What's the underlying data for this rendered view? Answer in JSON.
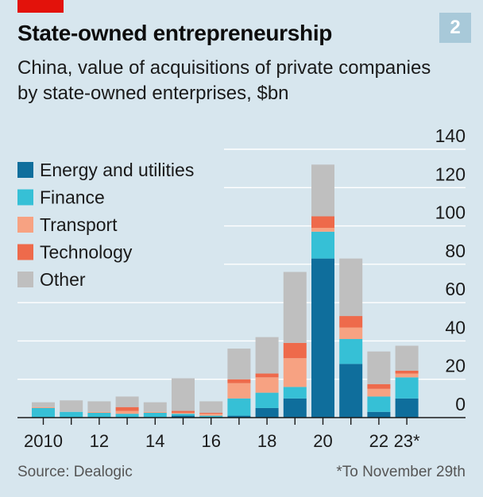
{
  "header": {
    "badge": "2",
    "title": "State-owned entrepreneurship",
    "subtitle": "China, value of acquisitions of private companies by state-owned enterprises, $bn"
  },
  "footer": {
    "source": "Source: Dealogic",
    "footnote": "*To November 29th"
  },
  "colors": {
    "background": "#d7e6ee",
    "brand_red": "#e3120b",
    "energy": "#0f6e9c",
    "finance": "#36c0d6",
    "transport": "#f7a282",
    "technology": "#ee6a4b",
    "other": "#bfbfbf"
  },
  "chart_data": {
    "type": "bar",
    "stacked": true,
    "categories": [
      "2010",
      "2011",
      "2012",
      "2013",
      "2014",
      "2015",
      "2016",
      "2017",
      "2018",
      "2019",
      "2020",
      "2021",
      "2022",
      "2023*"
    ],
    "x_tick_labels": [
      "2010",
      "",
      "12",
      "",
      "14",
      "",
      "16",
      "",
      "18",
      "",
      "20",
      "",
      "22",
      "23*"
    ],
    "series": [
      {
        "name": "Energy and utilities",
        "color": "#0f6e9c",
        "values": [
          0,
          0,
          0,
          0,
          0,
          1,
          0,
          1,
          5,
          10,
          83,
          28,
          3,
          10
        ]
      },
      {
        "name": "Finance",
        "color": "#36c0d6",
        "values": [
          5,
          3,
          2.5,
          2,
          2.5,
          1,
          1,
          9,
          8,
          6,
          14,
          13,
          8,
          11
        ]
      },
      {
        "name": "Transport",
        "color": "#f7a282",
        "values": [
          0.5,
          0,
          0.5,
          1.5,
          0.5,
          0.5,
          1,
          8,
          8,
          15,
          2,
          6,
          4,
          2
        ]
      },
      {
        "name": "Technology",
        "color": "#ee6a4b",
        "values": [
          0,
          0,
          0,
          2,
          0,
          1,
          0.5,
          2,
          2,
          8,
          6,
          6,
          2.5,
          1.5
        ]
      },
      {
        "name": "Other",
        "color": "#bfbfbf",
        "values": [
          2.5,
          6,
          5.5,
          5.5,
          5,
          17,
          6,
          16,
          19,
          37,
          27,
          30,
          17,
          13
        ]
      }
    ],
    "ylim": [
      0,
      140
    ],
    "y_ticks": [
      0,
      20,
      40,
      60,
      80,
      100,
      120,
      140
    ],
    "y_axis_side": "right",
    "grid": true,
    "legend_position": "top-left"
  }
}
